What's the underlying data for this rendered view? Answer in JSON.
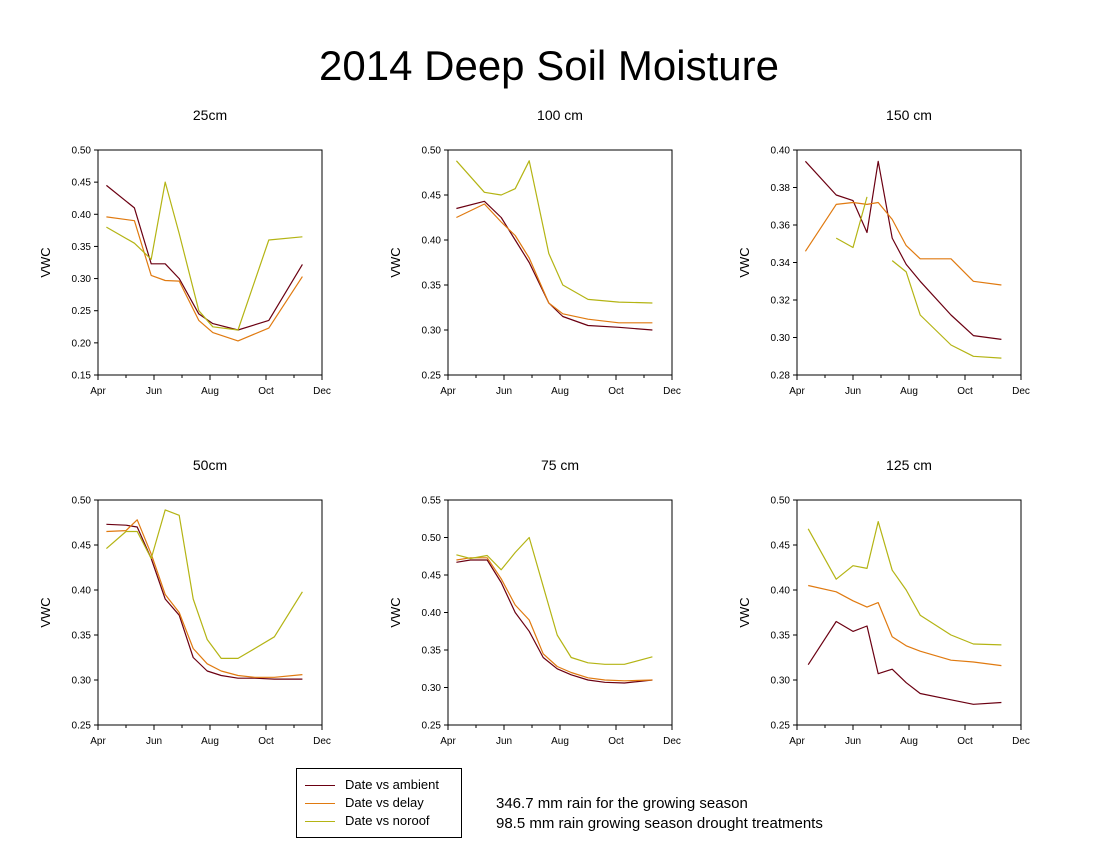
{
  "title": "2014 Deep Soil Moisture",
  "legend": [
    {
      "label": "Date vs ambient",
      "color": "#6b0012"
    },
    {
      "label": "Date vs delay",
      "color": "#e07a10"
    },
    {
      "label": "Date vs noroof",
      "color": "#b4b414"
    }
  ],
  "notes": [
    "346.7 mm rain for the growing season",
    "98.5 mm rain growing season drought treatments"
  ],
  "chart_data": [
    {
      "type": "line",
      "title": "25cm",
      "ylabel": "VWC",
      "xticks": [
        "Apr",
        "Jun",
        "Aug",
        "Oct",
        "Dec"
      ],
      "xlim": [
        0,
        8
      ],
      "ylim": [
        0.15,
        0.5
      ],
      "yticks": [
        "0.15",
        "0.20",
        "0.25",
        "0.30",
        "0.35",
        "0.40",
        "0.45",
        "0.50"
      ],
      "series": [
        {
          "name": "Date vs ambient",
          "x": [
            0.3,
            1.3,
            1.9,
            2.4,
            2.9,
            3.6,
            4.1,
            5.0,
            6.1,
            7.3
          ],
          "y": [
            0.445,
            0.41,
            0.323,
            0.323,
            0.3,
            0.245,
            0.23,
            0.22,
            0.235,
            0.322
          ]
        },
        {
          "name": "Date vs delay",
          "x": [
            0.3,
            1.3,
            1.9,
            2.4,
            2.9,
            3.6,
            4.1,
            5.0,
            6.1,
            7.3
          ],
          "y": [
            0.396,
            0.39,
            0.305,
            0.297,
            0.296,
            0.235,
            0.216,
            0.203,
            0.223,
            0.303
          ]
        },
        {
          "name": "Date vs noroof",
          "x": [
            0.3,
            1.3,
            1.9,
            2.4,
            2.9,
            3.6,
            4.1,
            5.0,
            6.1,
            7.3
          ],
          "y": [
            0.38,
            0.355,
            0.33,
            0.45,
            0.37,
            0.25,
            0.225,
            0.22,
            0.36,
            0.365
          ]
        }
      ]
    },
    {
      "type": "line",
      "title": "100 cm",
      "ylabel": "VWC",
      "xticks": [
        "Apr",
        "Jun",
        "Aug",
        "Oct",
        "Dec"
      ],
      "xlim": [
        0,
        8
      ],
      "ylim": [
        0.25,
        0.5
      ],
      "yticks": [
        "0.25",
        "0.30",
        "0.35",
        "0.40",
        "0.45",
        "0.50"
      ],
      "series": [
        {
          "name": "Date vs ambient",
          "x": [
            0.3,
            1.3,
            1.9,
            2.4,
            2.9,
            3.6,
            4.1,
            5.0,
            6.1,
            7.3
          ],
          "y": [
            0.435,
            0.443,
            0.425,
            0.4,
            0.375,
            0.33,
            0.315,
            0.305,
            0.303,
            0.3
          ]
        },
        {
          "name": "Date vs delay",
          "x": [
            0.3,
            1.3,
            1.9,
            2.4,
            2.9,
            3.6,
            4.1,
            5.0,
            6.1,
            7.3
          ],
          "y": [
            0.425,
            0.44,
            0.42,
            0.405,
            0.38,
            0.33,
            0.318,
            0.312,
            0.308,
            0.308
          ]
        },
        {
          "name": "Date vs noroof",
          "x": [
            0.3,
            1.3,
            1.9,
            2.4,
            2.9,
            3.6,
            4.1,
            5.0,
            6.1,
            7.3
          ],
          "y": [
            0.488,
            0.453,
            0.45,
            0.457,
            0.488,
            0.385,
            0.35,
            0.334,
            0.331,
            0.33
          ]
        }
      ]
    },
    {
      "type": "line",
      "title": "150 cm",
      "ylabel": "VWC",
      "xticks": [
        "Apr",
        "Jun",
        "Aug",
        "Oct",
        "Dec"
      ],
      "xlim": [
        0,
        8
      ],
      "ylim": [
        0.28,
        0.4
      ],
      "yticks": [
        "0.28",
        "0.30",
        "0.32",
        "0.34",
        "0.36",
        "0.38",
        "0.40"
      ],
      "series": [
        {
          "name": "Date vs ambient",
          "x": [
            0.3,
            1.4,
            2.0,
            2.5,
            2.9,
            3.4,
            3.9,
            4.4,
            5.5,
            6.3,
            7.3
          ],
          "y": [
            0.394,
            0.376,
            0.373,
            0.356,
            0.394,
            0.353,
            0.339,
            0.33,
            0.312,
            0.301,
            0.299
          ]
        },
        {
          "name": "Date vs delay",
          "x": [
            0.3,
            1.4,
            2.0,
            2.5,
            2.9,
            3.4,
            3.9,
            4.4,
            5.5,
            6.3,
            7.3
          ],
          "y": [
            0.346,
            0.371,
            0.372,
            0.371,
            0.372,
            0.363,
            0.349,
            0.342,
            0.342,
            0.33,
            0.328
          ]
        },
        {
          "name": "Date vs noroof",
          "x": [
            1.4,
            2.0,
            2.5,
            null,
            3.4,
            3.9,
            4.4,
            5.5,
            6.3,
            7.3
          ],
          "y": [
            0.353,
            0.348,
            0.375,
            null,
            0.341,
            0.335,
            0.312,
            0.296,
            0.29,
            0.289
          ]
        }
      ]
    },
    {
      "type": "line",
      "title": "50cm",
      "ylabel": "VWC",
      "xticks": [
        "Apr",
        "Jun",
        "Aug",
        "Oct",
        "Dec"
      ],
      "xlim": [
        0,
        8
      ],
      "ylim": [
        0.25,
        0.5
      ],
      "yticks": [
        "0.25",
        "0.30",
        "0.35",
        "0.40",
        "0.45",
        "0.50"
      ],
      "series": [
        {
          "name": "Date vs ambient",
          "x": [
            0.3,
            1.0,
            1.4,
            1.9,
            2.4,
            2.9,
            3.4,
            3.9,
            4.4,
            5.0,
            5.6,
            6.3,
            7.3
          ],
          "y": [
            0.473,
            0.472,
            0.47,
            0.435,
            0.39,
            0.372,
            0.325,
            0.31,
            0.305,
            0.302,
            0.302,
            0.301,
            0.301
          ]
        },
        {
          "name": "Date vs delay",
          "x": [
            0.3,
            1.0,
            1.4,
            1.9,
            2.4,
            2.9,
            3.4,
            3.9,
            4.4,
            5.0,
            5.6,
            6.3,
            7.3
          ],
          "y": [
            0.465,
            0.466,
            0.478,
            0.44,
            0.395,
            0.375,
            0.335,
            0.318,
            0.31,
            0.305,
            0.303,
            0.303,
            0.306
          ]
        },
        {
          "name": "Date vs noroof",
          "x": [
            0.3,
            1.0,
            1.4,
            1.9,
            2.4,
            2.9,
            3.4,
            3.9,
            4.4,
            5.0,
            5.6,
            6.3,
            7.3
          ],
          "y": [
            0.446,
            0.465,
            0.465,
            0.435,
            0.489,
            0.483,
            0.39,
            0.345,
            0.324,
            0.324,
            0.335,
            0.348,
            0.398
          ]
        }
      ]
    },
    {
      "type": "line",
      "title": "75 cm",
      "ylabel": "VWC",
      "xticks": [
        "Apr",
        "Jun",
        "Aug",
        "Oct",
        "Dec"
      ],
      "xlim": [
        0,
        8
      ],
      "ylim": [
        0.25,
        0.55
      ],
      "yticks": [
        "0.25",
        "0.30",
        "0.35",
        "0.40",
        "0.45",
        "0.50",
        "0.55"
      ],
      "series": [
        {
          "name": "Date vs ambient",
          "x": [
            0.3,
            0.8,
            1.4,
            1.9,
            2.4,
            2.9,
            3.4,
            3.9,
            4.4,
            5.0,
            5.6,
            6.3,
            7.3
          ],
          "y": [
            0.467,
            0.47,
            0.47,
            0.44,
            0.4,
            0.375,
            0.34,
            0.325,
            0.317,
            0.31,
            0.307,
            0.306,
            0.31
          ]
        },
        {
          "name": "Date vs delay",
          "x": [
            0.3,
            0.8,
            1.4,
            1.9,
            2.4,
            2.9,
            3.4,
            3.9,
            4.4,
            5.0,
            5.6,
            6.3,
            7.3
          ],
          "y": [
            0.47,
            0.473,
            0.473,
            0.445,
            0.41,
            0.39,
            0.345,
            0.328,
            0.32,
            0.313,
            0.31,
            0.309,
            0.31
          ]
        },
        {
          "name": "Date vs noroof",
          "x": [
            0.3,
            0.8,
            1.4,
            1.9,
            2.4,
            2.9,
            3.4,
            3.9,
            4.4,
            5.0,
            5.6,
            6.3,
            7.3
          ],
          "y": [
            0.477,
            0.472,
            0.476,
            0.457,
            0.48,
            0.5,
            0.435,
            0.37,
            0.34,
            0.333,
            0.331,
            0.331,
            0.341
          ]
        }
      ]
    },
    {
      "type": "line",
      "title": "125 cm",
      "ylabel": "VWC",
      "xticks": [
        "Apr",
        "Jun",
        "Aug",
        "Oct",
        "Dec"
      ],
      "xlim": [
        0,
        8
      ],
      "ylim": [
        0.25,
        0.5
      ],
      "yticks": [
        "0.25",
        "0.30",
        "0.35",
        "0.40",
        "0.45",
        "0.50"
      ],
      "series": [
        {
          "name": "Date vs ambient",
          "x": [
            0.4,
            1.4,
            2.0,
            2.5,
            2.9,
            3.4,
            3.9,
            4.4,
            5.5,
            6.3,
            7.3
          ],
          "y": [
            0.317,
            0.365,
            0.354,
            0.36,
            0.307,
            0.312,
            0.297,
            0.285,
            0.278,
            0.273,
            0.275
          ]
        },
        {
          "name": "Date vs delay",
          "x": [
            0.4,
            1.4,
            2.0,
            2.5,
            2.9,
            3.4,
            3.9,
            4.4,
            5.5,
            6.3,
            7.3
          ],
          "y": [
            0.405,
            0.398,
            0.388,
            0.381,
            0.386,
            0.348,
            0.338,
            0.332,
            0.322,
            0.32,
            0.316
          ]
        },
        {
          "name": "Date vs noroof",
          "x": [
            0.4,
            1.4,
            2.0,
            2.5,
            2.9,
            3.4,
            3.9,
            4.4,
            5.5,
            6.3,
            7.3
          ],
          "y": [
            0.468,
            0.412,
            0.427,
            0.424,
            0.476,
            0.422,
            0.4,
            0.372,
            0.35,
            0.34,
            0.339
          ]
        }
      ]
    }
  ]
}
